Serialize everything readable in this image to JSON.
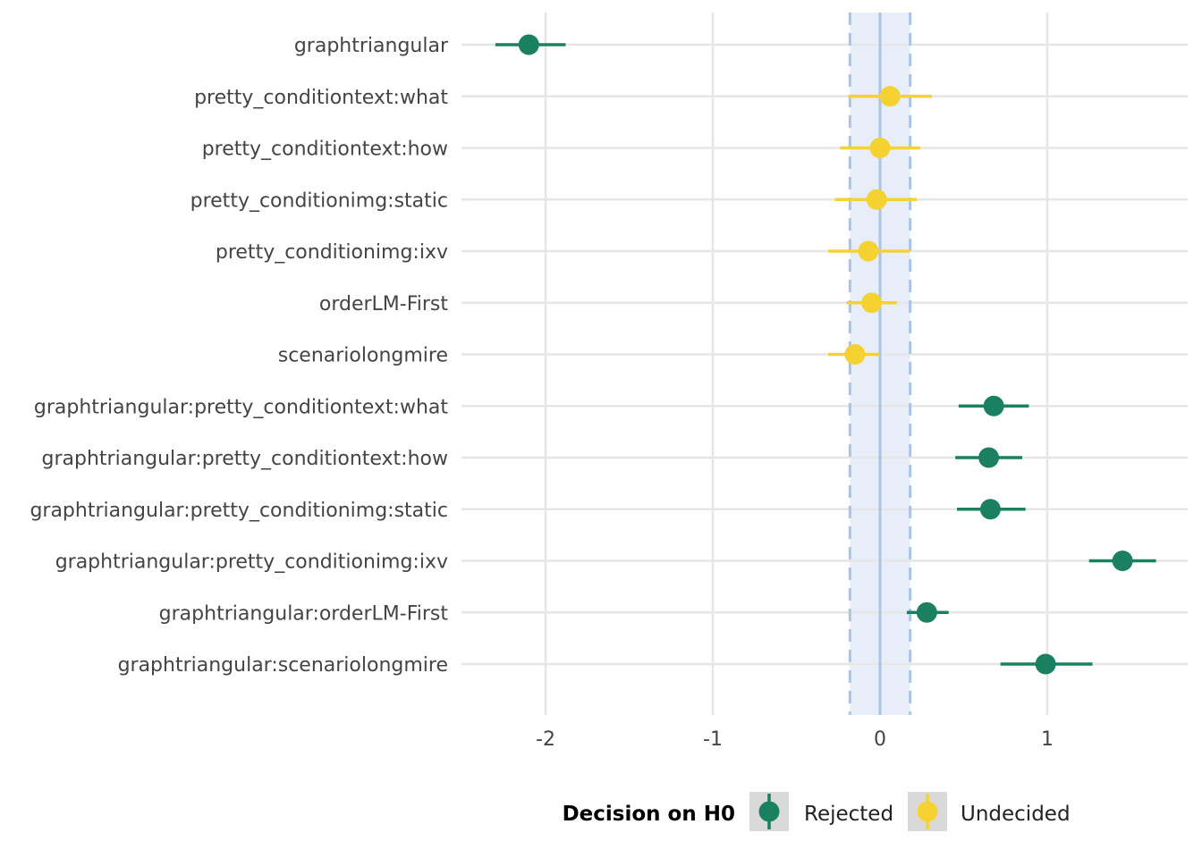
{
  "chart_data": {
    "type": "scatter",
    "subtype": "point-range",
    "title": "",
    "xlabel": "",
    "ylabel": "",
    "xlim": [
      -2.5,
      1.85
    ],
    "x_ticks": [
      -2,
      -1,
      0,
      1
    ],
    "x_tick_labels": [
      "-2",
      "-1",
      "0",
      "1"
    ],
    "grid": true,
    "rope": {
      "low": -0.18,
      "high": 0.18,
      "center": 0
    },
    "legend": {
      "title": "Decision on H0",
      "position": "bottom",
      "entries": [
        {
          "label": "Rejected",
          "color": "#1b8060"
        },
        {
          "label": "Undecided",
          "color": "#f5d232"
        }
      ]
    },
    "colors": {
      "Rejected": "#1b8060",
      "Undecided": "#f5d232",
      "rope_fill": "#e8eef9",
      "rope_line": "#aac4e8"
    },
    "points": [
      {
        "term": "graphtriangular",
        "estimate": -2.1,
        "low": -2.3,
        "high": -1.88,
        "decision": "Rejected"
      },
      {
        "term": "pretty_conditiontext:what",
        "estimate": 0.06,
        "low": -0.19,
        "high": 0.31,
        "decision": "Undecided"
      },
      {
        "term": "pretty_conditiontext:how",
        "estimate": 0.0,
        "low": -0.24,
        "high": 0.24,
        "decision": "Undecided"
      },
      {
        "term": "pretty_conditionimg:static",
        "estimate": -0.02,
        "low": -0.27,
        "high": 0.22,
        "decision": "Undecided"
      },
      {
        "term": "pretty_conditionimg:ixv",
        "estimate": -0.07,
        "low": -0.31,
        "high": 0.18,
        "decision": "Undecided"
      },
      {
        "term": "orderLM-First",
        "estimate": -0.05,
        "low": -0.2,
        "high": 0.1,
        "decision": "Undecided"
      },
      {
        "term": "scenariolongmire",
        "estimate": -0.15,
        "low": -0.31,
        "high": 0.0,
        "decision": "Undecided"
      },
      {
        "term": "graphtriangular:pretty_conditiontext:what",
        "estimate": 0.68,
        "low": 0.47,
        "high": 0.89,
        "decision": "Rejected"
      },
      {
        "term": "graphtriangular:pretty_conditiontext:how",
        "estimate": 0.65,
        "low": 0.45,
        "high": 0.85,
        "decision": "Rejected"
      },
      {
        "term": "graphtriangular:pretty_conditionimg:static",
        "estimate": 0.66,
        "low": 0.46,
        "high": 0.87,
        "decision": "Rejected"
      },
      {
        "term": "graphtriangular:pretty_conditionimg:ixv",
        "estimate": 1.45,
        "low": 1.25,
        "high": 1.65,
        "decision": "Rejected"
      },
      {
        "term": "graphtriangular:orderLM-First",
        "estimate": 0.28,
        "low": 0.16,
        "high": 0.41,
        "decision": "Rejected"
      },
      {
        "term": "graphtriangular:scenariolongmire",
        "estimate": 0.99,
        "low": 0.72,
        "high": 1.27,
        "decision": "Rejected"
      }
    ]
  }
}
